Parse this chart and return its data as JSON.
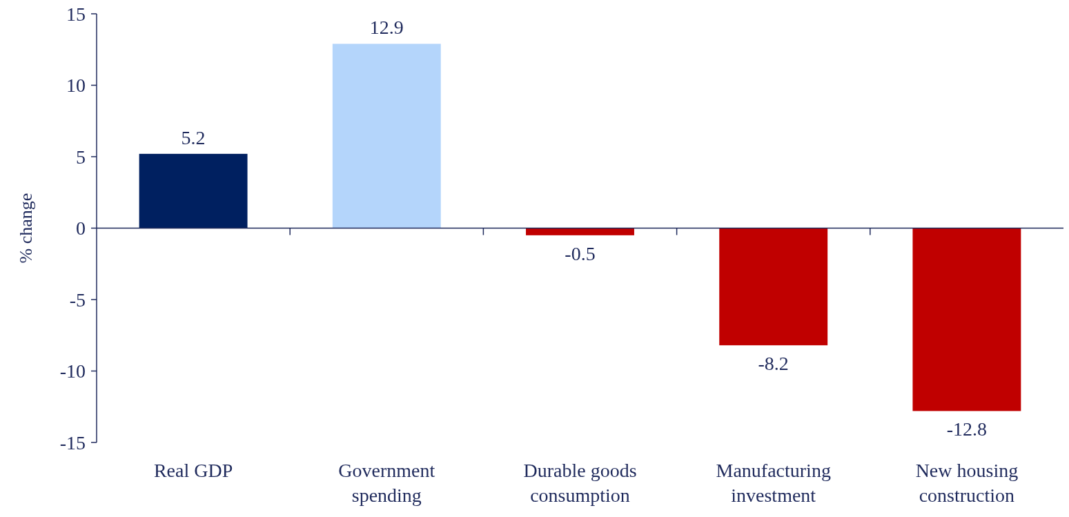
{
  "chart_data": {
    "type": "bar",
    "ylabel": "% change",
    "categories": [
      "Real GDP",
      "Government spending",
      "Durable goods consumption",
      "Manufacturing investment",
      "New housing construction"
    ],
    "values": [
      5.2,
      12.9,
      -0.5,
      -8.2,
      -12.8
    ],
    "colors": [
      "#002060",
      "#b4d5fb",
      "#c00000",
      "#c00000",
      "#c00000"
    ],
    "ylim": [
      -15,
      15
    ],
    "yticks": [
      -15,
      -10,
      -5,
      0,
      5,
      10,
      15
    ],
    "grid": false,
    "data_labels": true
  }
}
